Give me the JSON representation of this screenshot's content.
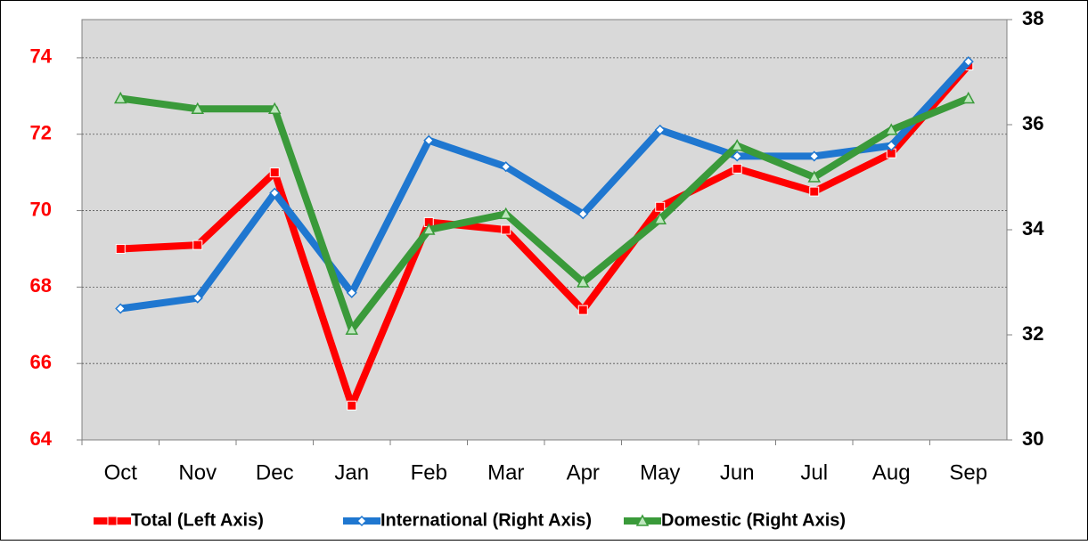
{
  "chart_data": {
    "type": "line",
    "categories": [
      "Oct",
      "Nov",
      "Dec",
      "Jan",
      "Feb",
      "Mar",
      "Apr",
      "May",
      "Jun",
      "Jul",
      "Aug",
      "Sep"
    ],
    "series": [
      {
        "name": "Total (Left Axis)",
        "color": "#ff0000",
        "axis": "y",
        "marker": "square",
        "values": [
          69.0,
          69.1,
          71.0,
          64.9,
          69.7,
          69.5,
          67.4,
          70.1,
          71.1,
          70.5,
          71.5,
          73.8
        ]
      },
      {
        "name": "International (Right Axis)",
        "color": "#1f77d0",
        "axis": "y2",
        "marker": "diamond",
        "values": [
          32.5,
          32.7,
          34.7,
          32.8,
          35.7,
          35.2,
          34.3,
          35.9,
          35.4,
          35.4,
          35.6,
          37.2
        ]
      },
      {
        "name": "Domestic (Right Axis)",
        "color": "#3a9a3a",
        "axis": "y2",
        "marker": "triangle",
        "values": [
          36.5,
          36.3,
          36.3,
          32.1,
          34.0,
          34.3,
          33.0,
          34.2,
          35.6,
          35.0,
          35.9,
          36.5
        ]
      }
    ],
    "ylim": [
      64,
      75
    ],
    "yticks": [
      64,
      66,
      68,
      70,
      72,
      74
    ],
    "y2lim": [
      30,
      38
    ],
    "y2ticks": [
      30,
      32,
      34,
      36,
      38
    ],
    "grid": true,
    "legend": "bottom"
  }
}
